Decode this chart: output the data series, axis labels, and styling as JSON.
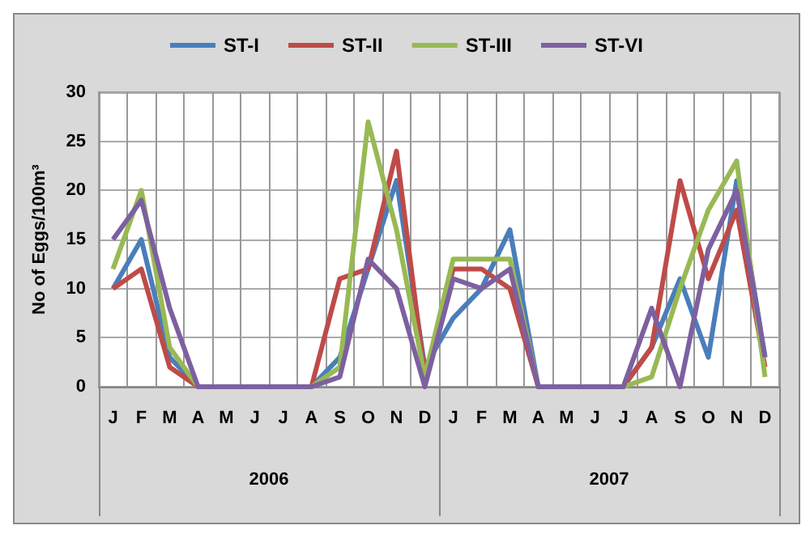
{
  "chart_data": {
    "type": "line",
    "ylabel": "No of Eggs/100m³",
    "categories": [
      "J",
      "F",
      "M",
      "A",
      "M",
      "J",
      "J",
      "A",
      "S",
      "O",
      "N",
      "D",
      "J",
      "F",
      "M",
      "A",
      "M",
      "J",
      "J",
      "A",
      "S",
      "O",
      "N",
      "D"
    ],
    "annotations": [
      "2006",
      "2007"
    ],
    "series": [
      {
        "name": "ST-I",
        "color": "#4a7ebb",
        "values": [
          10,
          15,
          3,
          0,
          0,
          0,
          0,
          0,
          3,
          12,
          21,
          2,
          7,
          10,
          16,
          0,
          0,
          0,
          0,
          4,
          11,
          3,
          21,
          3
        ]
      },
      {
        "name": "ST-II",
        "color": "#be4b48",
        "values": [
          10,
          12,
          2,
          0,
          0,
          0,
          0,
          0,
          11,
          12,
          24,
          1,
          12,
          12,
          10,
          0,
          0,
          0,
          0,
          4,
          21,
          11,
          18,
          2
        ]
      },
      {
        "name": "ST-III",
        "color": "#98b954",
        "values": [
          12,
          20,
          4,
          0,
          0,
          0,
          0,
          0,
          2,
          27,
          16,
          1,
          13,
          13,
          13,
          0,
          0,
          0,
          0,
          1,
          10,
          18,
          23,
          1
        ]
      },
      {
        "name": "ST-VI",
        "color": "#7d60a0",
        "values": [
          15,
          19,
          8,
          0,
          0,
          0,
          0,
          0,
          1,
          13,
          10,
          0,
          11,
          10,
          12,
          0,
          0,
          0,
          0,
          8,
          0,
          14,
          20,
          3
        ]
      }
    ],
    "ylim": [
      0,
      30
    ],
    "yticks": [
      0,
      5,
      10,
      15,
      20,
      25,
      30
    ],
    "grid": true,
    "legend": "top",
    "marker": "none",
    "line_style": "solid"
  }
}
